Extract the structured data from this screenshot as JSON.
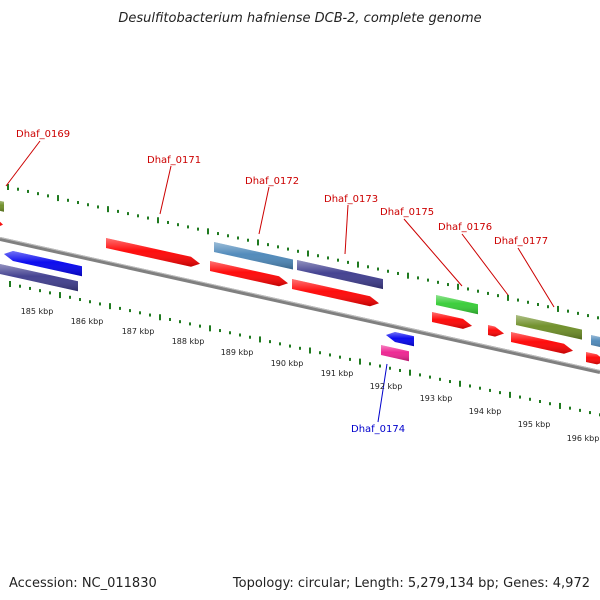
{
  "title": "Desulfitobacterium hafniense DCB-2, complete genome",
  "accession": "Accession: NC_011830",
  "topology": "Topology: circular; Length: 5,279,134 bp; Genes: 4,972",
  "colors": {
    "backbone": "#808080",
    "ticks": "#1f7a1f",
    "label_top": "#cc0000",
    "label_bottom": "#0000cc",
    "red": "#ff0000",
    "blue": "#0000ee",
    "purple": "#3c3a8c",
    "steel": "#4a86b8",
    "green": "#33cc33",
    "olive": "#6b8c23",
    "magenta": "#ee1f8f"
  },
  "kbp_labels": [
    "185 kbp",
    "186 kbp",
    "187 kbp",
    "188 kbp",
    "189 kbp",
    "190 kbp",
    "191 kbp",
    "192 kbp",
    "193 kbp",
    "194 kbp",
    "195 kbp",
    "196 kbp"
  ],
  "gene_labels": [
    {
      "text": "Dhaf_0169",
      "color": "label_top"
    },
    {
      "text": "Dhaf_0171",
      "color": "label_top"
    },
    {
      "text": "Dhaf_0172",
      "color": "label_top"
    },
    {
      "text": "Dhaf_0173",
      "color": "label_top"
    },
    {
      "text": "Dhaf_0175",
      "color": "label_top"
    },
    {
      "text": "Dhaf_0176",
      "color": "label_top"
    },
    {
      "text": "Dhaf_0177",
      "color": "label_top"
    },
    {
      "text": "Dhaf_0174",
      "color": "label_bottom"
    }
  ]
}
